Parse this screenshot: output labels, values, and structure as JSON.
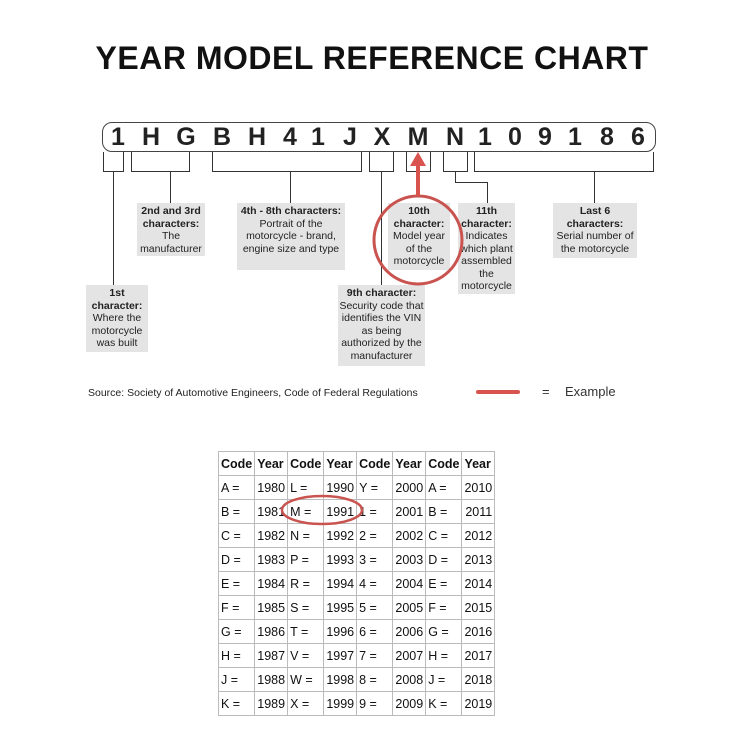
{
  "title": "YEAR MODEL REFERENCE CHART",
  "vin": [
    "1",
    "H",
    "G",
    "B",
    "H",
    "4",
    "1",
    "J",
    "X",
    "M",
    "N",
    "1",
    "0",
    "9",
    "1",
    "8",
    "6"
  ],
  "labels": {
    "first": {
      "head": "1st character:",
      "body": "Where the motorcycle was built"
    },
    "second": {
      "head": "2nd and 3rd characters:",
      "body": "The manufacturer"
    },
    "fourth": {
      "head": "4th - 8th characters:",
      "body": "Portrait of the motorcycle - brand, engine size and type"
    },
    "ninth": {
      "head": "9th character:",
      "body": "Security code that identifies the VIN as being authorized by the manufacturer"
    },
    "tenth": {
      "head": "10th character:",
      "body": "Model year of the motorcycle"
    },
    "eleventh": {
      "head": "11th character:",
      "body": "Indicates which plant assembled the motorcycle"
    },
    "last": {
      "head": "Last 6 characters:",
      "body": "Serial number of the motorcycle"
    }
  },
  "source": "Source:  Society of Automotive Engineers, Code of Federal Regulations",
  "legend": {
    "equals": "=",
    "example": "Example",
    "color": "#d9534f"
  },
  "table": {
    "headers": [
      "Code",
      "Year",
      "Code",
      "Year",
      "Code",
      "Year",
      "Code",
      "Year"
    ],
    "rows": [
      [
        "A =",
        "1980",
        "L =",
        "1990",
        "Y =",
        "2000",
        "A =",
        "2010"
      ],
      [
        "B =",
        "1981",
        "M =",
        "1991",
        "1 =",
        "2001",
        "B =",
        "2011"
      ],
      [
        "C =",
        "1982",
        "N =",
        "1992",
        "2 =",
        "2002",
        "C =",
        "2012"
      ],
      [
        "D =",
        "1983",
        "P =",
        "1993",
        "3 =",
        "2003",
        "D =",
        "2013"
      ],
      [
        "E =",
        "1984",
        "R =",
        "1994",
        "4 =",
        "2004",
        "E =",
        "2014"
      ],
      [
        "F =",
        "1985",
        "S =",
        "1995",
        "5 =",
        "2005",
        "F =",
        "2015"
      ],
      [
        "G =",
        "1986",
        "T =",
        "1996",
        "6 =",
        "2006",
        "G =",
        "2016"
      ],
      [
        "H =",
        "1987",
        "V =",
        "1997",
        "7 =",
        "2007",
        "H =",
        "2017"
      ],
      [
        "J =",
        "1988",
        "W =",
        "1998",
        "8 =",
        "2008",
        "J =",
        "2018"
      ],
      [
        "K =",
        "1989",
        "X =",
        "1999",
        "9 =",
        "2009",
        "K =",
        "2019"
      ]
    ]
  }
}
